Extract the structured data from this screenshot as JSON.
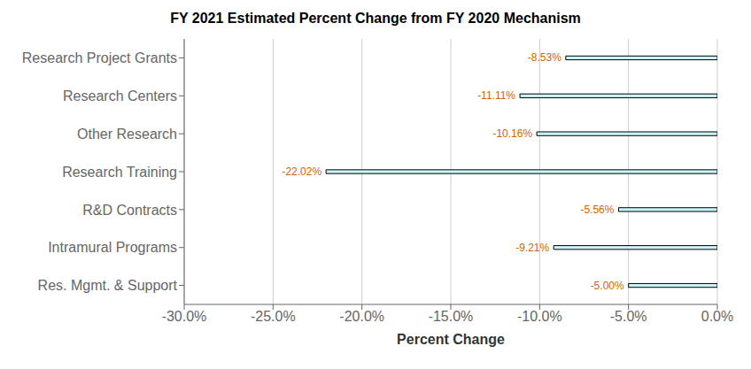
{
  "chart_data": {
    "type": "bar",
    "orientation": "horizontal",
    "title": "FY 2021 Estimated Percent Change from FY 2020 Mechanism",
    "xlabel": "Percent Change",
    "categories": [
      "Res. Mgmt. & Support",
      "Intramural Programs",
      "R&D Contracts",
      "Research Training",
      "Other Research",
      "Research Centers",
      "Research Project Grants"
    ],
    "values": [
      -5.0,
      -9.21,
      -5.56,
      -22.02,
      -10.16,
      -11.11,
      -8.53
    ],
    "value_labels": [
      "-5.00%",
      "-9.21%",
      "-5.56%",
      "-22.02%",
      "-10.16%",
      "-11.11%",
      "-8.53%"
    ],
    "data_labels": true,
    "color": "#C8F5F8",
    "xlim": [
      -30.0,
      0.0
    ],
    "xticks": [
      {
        "value": -30.0,
        "label": "-30.0%"
      },
      {
        "value": -25.0,
        "label": "-25.0%"
      },
      {
        "value": -20.0,
        "label": "-20.0%"
      },
      {
        "value": -15.0,
        "label": "-15.0%"
      },
      {
        "value": -10.0,
        "label": "-10.0%"
      },
      {
        "value": -5.0,
        "label": "-5.0%"
      },
      {
        "value": 0.0,
        "label": "0.0%"
      }
    ],
    "grid": true
  }
}
